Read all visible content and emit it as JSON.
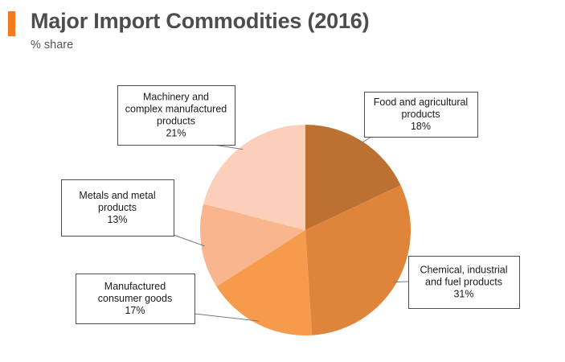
{
  "header": {
    "title": "Major Import Commodities (2016)",
    "subtitle": "% share",
    "accent_color": "#f47a20"
  },
  "chart_data": {
    "type": "pie",
    "slices": [
      {
        "label_lines": [
          "Food and agricultural",
          "products"
        ],
        "value": 18,
        "value_text": "18%",
        "color": "#bc7031"
      },
      {
        "label_lines": [
          "Chemical, industrial",
          "and fuel products"
        ],
        "value": 31,
        "value_text": "31%",
        "color": "#de843b"
      },
      {
        "label_lines": [
          "Manufactured",
          "consumer goods"
        ],
        "value": 17,
        "value_text": "17%",
        "color": "#f69a4c"
      },
      {
        "label_lines": [
          "Metals and metal",
          "products"
        ],
        "value": 13,
        "value_text": "13%",
        "color": "#f8b58e"
      },
      {
        "label_lines": [
          "Machinery and",
          "complex manufactured",
          "products"
        ],
        "value": 21,
        "value_text": "21%",
        "color": "#fbcfb9"
      }
    ]
  }
}
